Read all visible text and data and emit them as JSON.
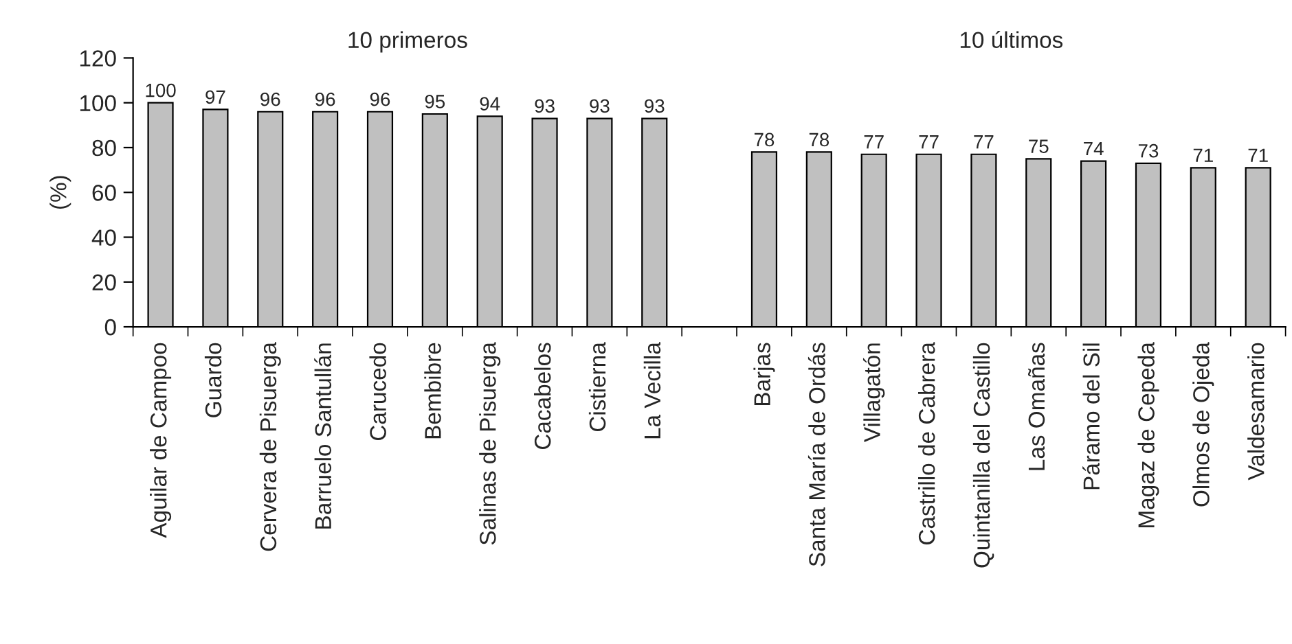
{
  "chart_data": {
    "type": "bar",
    "ylabel": "(%)",
    "categories": [
      "Aguilar de Campoo",
      "Guardo",
      "Cervera de Pisuerga",
      "Barruelo Santullán",
      "Carucedo",
      "Bembibre",
      "Salinas de Pisuerga",
      "Cacabelos",
      "Cistierna",
      "La Vecilla",
      null,
      "Barjas",
      "Santa María de Ordás",
      "Villagatón",
      "Castrillo de Cabrera",
      "Quintanilla del Castillo",
      "Las Omañas",
      "Páramo del Sil",
      "Magaz de Cepeda",
      "Olmos de Ojeda",
      "Valdesamario"
    ],
    "values": [
      100,
      97,
      96,
      96,
      96,
      95,
      94,
      93,
      93,
      93,
      null,
      78,
      78,
      77,
      77,
      77,
      75,
      74,
      73,
      71,
      71
    ],
    "color": "#c0c0c0",
    "ylim": [
      0,
      120
    ],
    "yticks": [
      0,
      20,
      40,
      60,
      80,
      100,
      120
    ],
    "data_labels": true,
    "grid": false,
    "legend": false,
    "annotations": [
      "10 primeros",
      "10 últimos"
    ]
  }
}
